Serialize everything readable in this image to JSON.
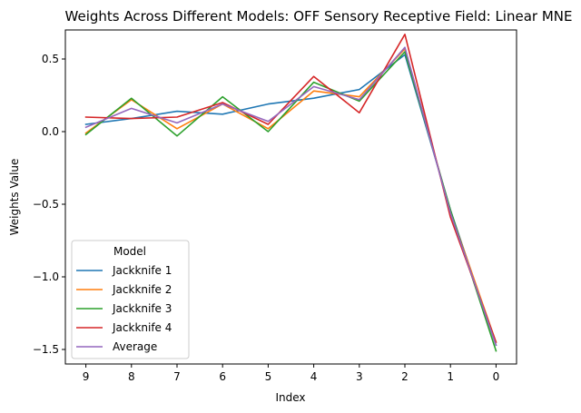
{
  "chart_data": {
    "type": "line",
    "title": "Weights Across Different Models: OFF Sensory Receptive Field: Linear MNE",
    "xlabel": "Index",
    "ylabel": "Weights Value",
    "x": [
      9,
      8,
      7,
      6,
      5,
      4,
      3,
      2,
      1,
      0
    ],
    "x_tick_labels": [
      "9",
      "8",
      "7",
      "6",
      "5",
      "4",
      "3",
      "2",
      "1",
      "0"
    ],
    "x_reversed": true,
    "xlim": [
      9.45,
      -0.45
    ],
    "ylim": [
      -1.6,
      0.7
    ],
    "y_ticks": [
      -1.5,
      -1.0,
      -0.5,
      0.0,
      0.5
    ],
    "y_tick_labels": [
      "−1.5",
      "−1.0",
      "−0.5",
      "0.0",
      "0.5"
    ],
    "grid": false,
    "legend": {
      "title": "Model",
      "placement": "lower-left"
    },
    "series": [
      {
        "name": "Jackknife 1",
        "color": "#1f77b4",
        "values": [
          0.05,
          0.09,
          0.14,
          0.12,
          0.19,
          0.23,
          0.29,
          0.53,
          -0.54,
          -1.47
        ]
      },
      {
        "name": "Jackknife 2",
        "color": "#ff7f0e",
        "values": [
          -0.01,
          0.22,
          0.02,
          0.19,
          0.02,
          0.28,
          0.24,
          0.57,
          -0.55,
          -1.45
        ]
      },
      {
        "name": "Jackknife 3",
        "color": "#2ca02c",
        "values": [
          -0.02,
          0.23,
          -0.03,
          0.24,
          0.0,
          0.34,
          0.21,
          0.55,
          -0.54,
          -1.51
        ]
      },
      {
        "name": "Jackknife 4",
        "color": "#d62728",
        "values": [
          0.1,
          0.09,
          0.1,
          0.2,
          0.05,
          0.38,
          0.13,
          0.67,
          -0.59,
          -1.45
        ]
      },
      {
        "name": "Average",
        "color": "#9467bd",
        "values": [
          0.03,
          0.16,
          0.06,
          0.19,
          0.07,
          0.31,
          0.22,
          0.58,
          -0.56,
          -1.47
        ]
      }
    ]
  }
}
